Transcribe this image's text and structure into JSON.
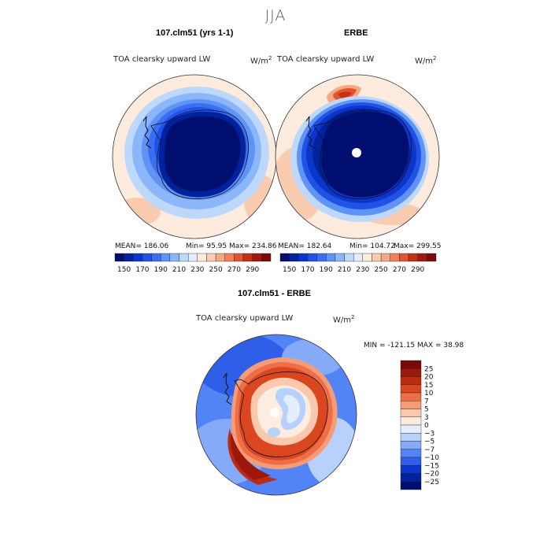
{
  "page_title": "JJA",
  "palette": {
    "abs": [
      "#000e70",
      "#00229c",
      "#0b35cc",
      "#2152e6",
      "#3a6ff2",
      "#5f93f6",
      "#8cb6fa",
      "#bed8fc",
      "#e2eefd",
      "#fdebdd",
      "#f9ccb0",
      "#f6a884",
      "#f0805c",
      "#e05530",
      "#c33119",
      "#a01910",
      "#7a0b08"
    ],
    "diff": [
      "#000e70",
      "#00229c",
      "#0b35cc",
      "#2f5ee8",
      "#5384f5",
      "#85abf8",
      "#b7d1fc",
      "#e4eefd",
      "#fdece0",
      "#fac8ad",
      "#f59b76",
      "#ee6e48",
      "#d9461f",
      "#bd2b13",
      "#9c170c",
      "#7a0808"
    ],
    "coast": "#111111"
  },
  "chart_data": [
    {
      "type": "heatmap",
      "title": "107.clm51 (yrs 1-1)",
      "variable_label": "TOA clearsky upward LW",
      "units": "W/m",
      "units_superscript": "2",
      "projection": "south-polar-stereographic",
      "stats": {
        "mean_text": "MEAN= 186.06",
        "min_text": "Min=  95.95",
        "max_text": "Max= 234.86"
      },
      "colorbar": {
        "orientation": "horizontal",
        "levels": [
          150,
          160,
          170,
          180,
          190,
          200,
          210,
          220,
          230,
          240,
          250,
          260,
          270,
          280,
          290
        ],
        "tick_labels": [
          "150",
          "170",
          "190",
          "210",
          "230",
          "250",
          "270",
          "290"
        ]
      }
    },
    {
      "type": "heatmap",
      "title": "ERBE",
      "variable_label": "TOA clearsky upward LW",
      "units": "W/m",
      "units_superscript": "2",
      "projection": "south-polar-stereographic",
      "stats": {
        "mean_text": "MEAN= 182.64",
        "min_text": "Min= 104.72",
        "max_text": "Max= 299.55"
      },
      "colorbar": {
        "orientation": "horizontal",
        "levels": [
          150,
          160,
          170,
          180,
          190,
          200,
          210,
          220,
          230,
          240,
          250,
          260,
          270,
          280,
          290
        ],
        "tick_labels": [
          "150",
          "170",
          "190",
          "210",
          "230",
          "250",
          "270",
          "290"
        ]
      }
    },
    {
      "type": "heatmap",
      "title": "107.clm51 - ERBE",
      "variable_label": "TOA clearsky upward LW",
      "units": "W/m",
      "units_superscript": "2",
      "projection": "south-polar-stereographic",
      "stats": {
        "minmax_text": "MIN = -121.15 MAX =  38.98"
      },
      "colorbar": {
        "orientation": "vertical",
        "levels": [
          -25,
          -20,
          -15,
          -10,
          -7,
          -5,
          -3,
          0,
          3,
          5,
          7,
          10,
          15,
          20,
          25
        ],
        "tick_labels": [
          "25",
          "20",
          "15",
          "10",
          "7",
          "5",
          "3",
          "0",
          "−3",
          "−5",
          "−7",
          "−10",
          "−15",
          "−20",
          "−25"
        ]
      }
    }
  ]
}
